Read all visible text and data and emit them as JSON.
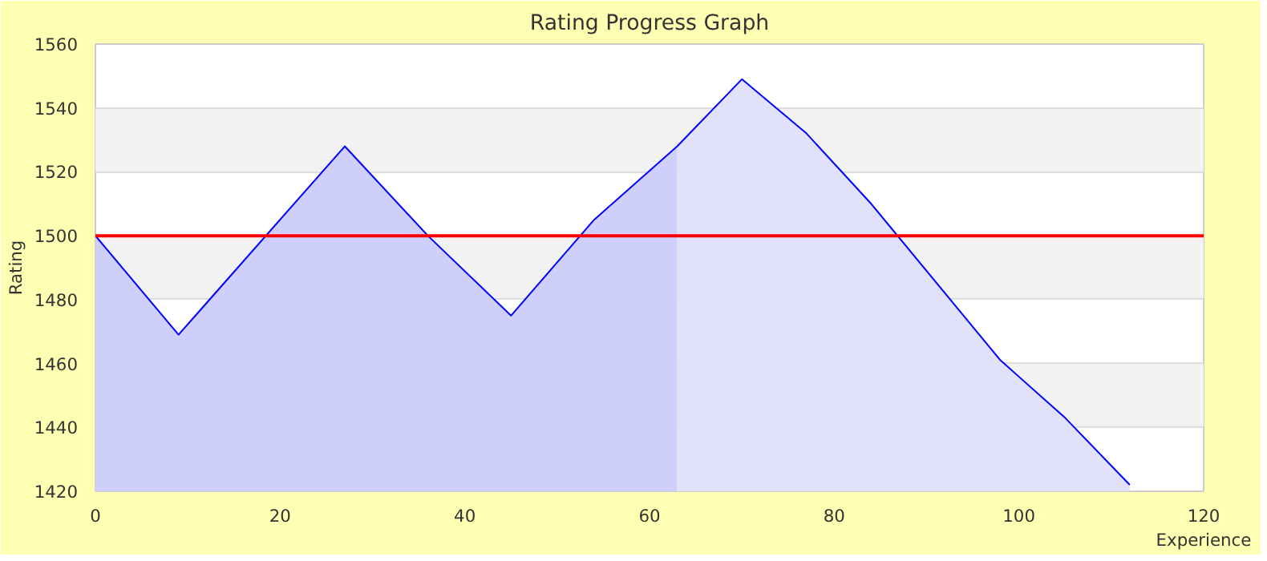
{
  "chart_data": {
    "type": "area",
    "title": "Rating Progress Graph",
    "xlabel": "Experience",
    "ylabel": "Rating",
    "xlim": [
      0,
      120
    ],
    "xticks": [
      0,
      20,
      40,
      60,
      80,
      100,
      120
    ],
    "ylim": [
      1420,
      1560
    ],
    "yticks": [
      1420,
      1440,
      1460,
      1480,
      1500,
      1520,
      1540,
      1560
    ],
    "grid": "y",
    "marker": "none",
    "series": [
      {
        "color": "#cfcffb",
        "x": [
          0,
          9,
          27,
          36,
          45,
          54,
          63
        ],
        "values": [
          1500,
          1469,
          1528,
          1500,
          1475,
          1505,
          1528
        ]
      },
      {
        "color": "#e1e1fa",
        "x": [
          63,
          70,
          77,
          84,
          98,
          105,
          112
        ],
        "values": [
          1528,
          1549,
          1532,
          1510,
          1461,
          1443,
          1422
        ]
      },
      {
        "type": "line",
        "color": "#0000ff",
        "x": [
          0,
          9,
          27,
          36,
          45,
          54,
          63,
          70,
          77,
          84,
          98,
          105,
          112
        ],
        "values": [
          1500,
          1469,
          1528,
          1500,
          1475,
          1505,
          1528,
          1549,
          1532,
          1510,
          1461,
          1443,
          1422
        ]
      }
    ],
    "ref_lines": [
      {
        "axis": "y",
        "value": 1500,
        "color": "#ff0000"
      }
    ]
  }
}
